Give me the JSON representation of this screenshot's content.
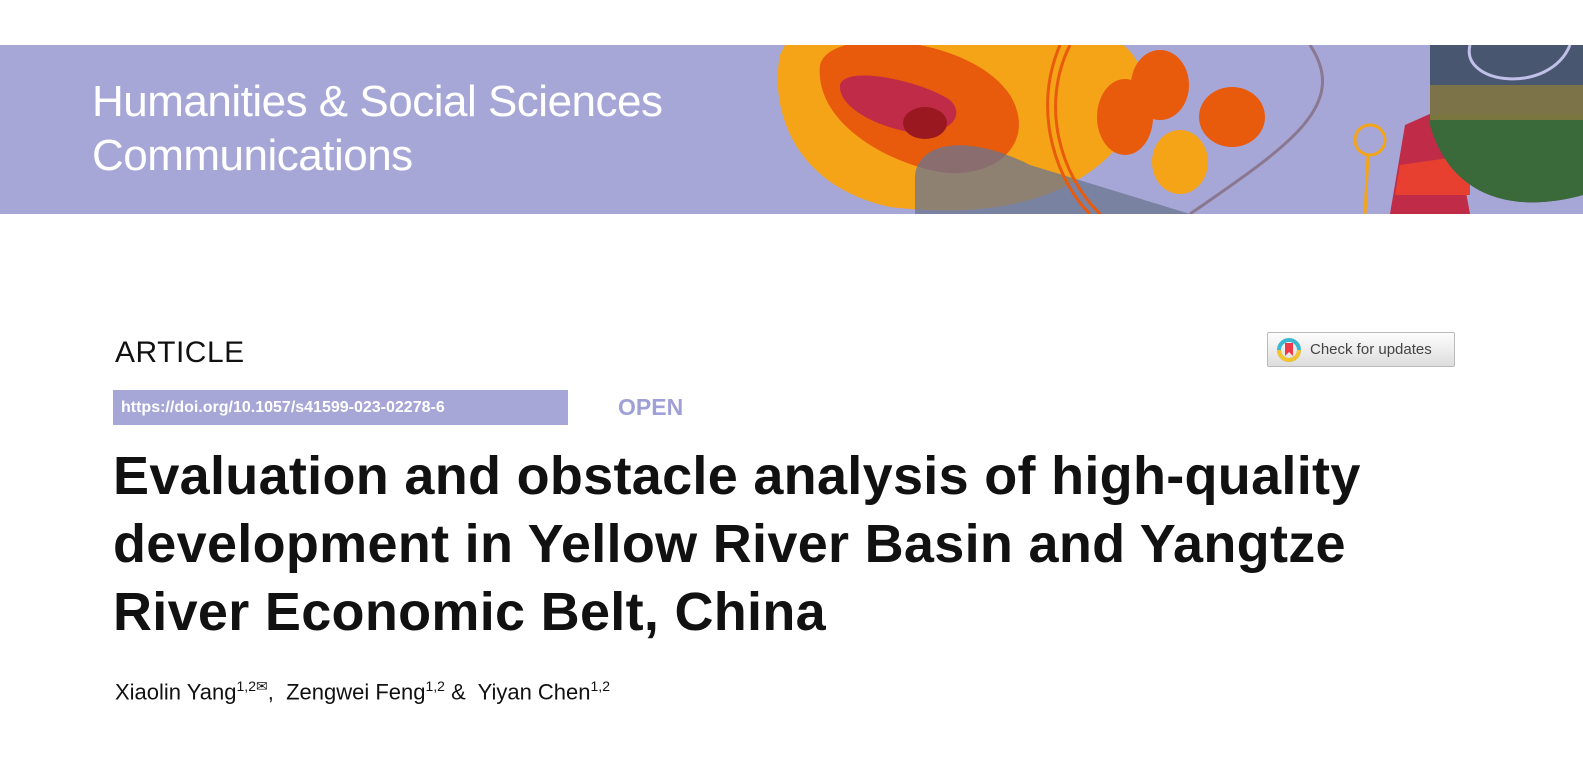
{
  "banner": {
    "journal_line1": "Humanities & Social Sciences",
    "journal_line2": "Communications",
    "color": "#a7a7d7"
  },
  "article_type": "ARTICLE",
  "doi": "https://doi.org/10.1057/s41599-023-02278-6",
  "open_access": "OPEN",
  "check_updates": "Check for updates",
  "title_lines": [
    "Evaluation and obstacle analysis of high-quality",
    "development in Yellow River Basin and Yangtze",
    "River Economic Belt, China"
  ],
  "authors": [
    {
      "name": "Xiaolin Yang",
      "aff": "1,2",
      "corresponding": true,
      "sep": ", "
    },
    {
      "name": "Zengwei Feng",
      "aff": "1,2",
      "sep": " & "
    },
    {
      "name": "Yiyan Chen",
      "aff": "1,2",
      "sep": ""
    }
  ]
}
